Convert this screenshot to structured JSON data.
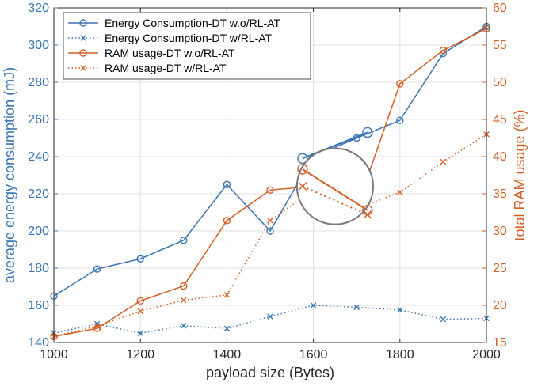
{
  "chart_data": {
    "type": "line",
    "xlabel": "payload size (Bytes)",
    "ylabel_left": "average energy consumption (mJ)",
    "ylabel_right": "total RAM usage (%)",
    "xlim": [
      1000,
      2000
    ],
    "ylim_left": [
      140,
      320
    ],
    "ylim_right": [
      15,
      60
    ],
    "x_ticks": [
      1000,
      1200,
      1400,
      1600,
      1800,
      2000
    ],
    "y_left_ticks": [
      140,
      160,
      180,
      200,
      220,
      240,
      260,
      280,
      300,
      320
    ],
    "y_right_ticks": [
      15,
      20,
      25,
      30,
      35,
      40,
      45,
      50,
      55,
      60
    ],
    "grid": true,
    "legend_position": "top-left",
    "colors": {
      "blue": "#3a74b5",
      "orange": "#d35f25",
      "magnifier": "#777777"
    },
    "series": [
      {
        "name": "Energy Consumption-DT w.o/RL-AT",
        "axis": "left",
        "color": "#3a74b5",
        "style": "solid",
        "marker": "circle",
        "x": [
          1000,
          1100,
          1200,
          1300,
          1400,
          1500,
          1600,
          1700,
          1800,
          1900,
          2000
        ],
        "values": [
          165,
          179.5,
          185,
          195,
          225,
          200,
          240,
          250,
          259.5,
          295.5,
          310
        ]
      },
      {
        "name": "Energy Consumption-DT w/RL-AT",
        "axis": "left",
        "color": "#3a74b5",
        "style": "dotted",
        "marker": "x",
        "x": [
          1000,
          1100,
          1200,
          1300,
          1400,
          1500,
          1600,
          1700,
          1800,
          1900,
          2000
        ],
        "values": [
          145,
          150,
          145,
          149,
          147.5,
          154,
          160,
          159,
          157.5,
          152.5,
          153
        ]
      },
      {
        "name": "RAM usage-DT w.o/RL-AT",
        "axis": "right",
        "color": "#d35f25",
        "style": "solid",
        "marker": "circle",
        "x": [
          1000,
          1100,
          1200,
          1300,
          1400,
          1500,
          1600,
          1700,
          1800,
          1900,
          2000
        ],
        "values": [
          15.8,
          16.9,
          20.6,
          22.6,
          31.4,
          35.5,
          36,
          33,
          49.8,
          54.3,
          57.2
        ]
      },
      {
        "name": "RAM usage-DT w/RL-AT",
        "axis": "right",
        "color": "#d35f25",
        "style": "dotted",
        "marker": "x",
        "x": [
          1000,
          1100,
          1200,
          1300,
          1400,
          1500,
          1600,
          1700,
          1800,
          1900,
          2000
        ],
        "values": [
          15.8,
          17.2,
          19.2,
          20.7,
          21.4,
          31.4,
          35.5,
          33,
          35.2,
          39.3,
          43
        ]
      }
    ],
    "annotations": [
      {
        "type": "magnifier",
        "center": {
          "x": 1650,
          "y_left": 224
        },
        "radius_x": 88,
        "detail": {
          "x_from": 1575,
          "x_to": 1725,
          "segments": [
            {
              "series": 0,
              "from": 239,
              "to": 253,
              "axis": "left"
            },
            {
              "series": 2,
              "from": 38.3,
              "to": 32.8,
              "axis": "right"
            },
            {
              "series": 3,
              "from": 36,
              "to": 32.2,
              "axis": "right"
            }
          ]
        }
      }
    ]
  }
}
